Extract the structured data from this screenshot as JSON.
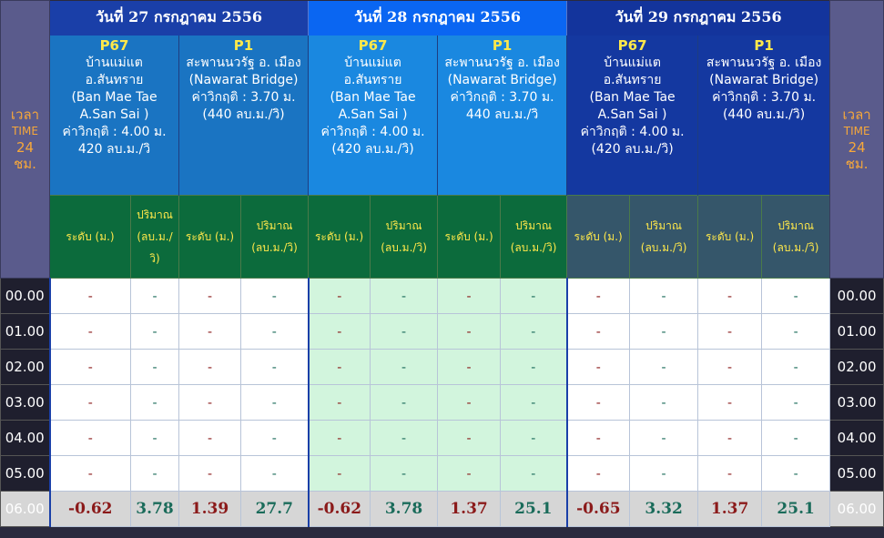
{
  "time_header": {
    "label": "เวลา",
    "time_word": "TIME",
    "hours": "24",
    "unit": "ชม."
  },
  "dates": [
    {
      "label": "วันที่ 27 กรกฎาคม 2556"
    },
    {
      "label": "วันที่ 28 กรกฎาคม 2556"
    },
    {
      "label": "วันที่ 29 กรกฎาคม 2556"
    }
  ],
  "stations": {
    "p67": {
      "code": "P67",
      "line1": "บ้านแม่แต",
      "line2": "อ.สันทราย",
      "line3": "(Ban Mae Tae",
      "line4": "A.San Sai )",
      "crit": "ค่าวิกฤติ : 4.00 ม.",
      "flow": "420 ลบ.ม./วิ",
      "flow_paren": "(420 ลบ.ม./วิ)"
    },
    "p1": {
      "code": "P1",
      "line1": "สะพานนวรัฐ อ. เมือง",
      "line2": "(Nawarat Bridge)",
      "crit": "ค่าวิกฤติ : 3.70 ม.",
      "flow_paren": "(440 ลบ.ม./วิ)",
      "flow": "440 ลบ.ม./วิ"
    }
  },
  "sub_headers": {
    "level": "ระดับ (ม.)",
    "flow_a": "ปริมาณ",
    "flow_b": "(ลบ.ม./",
    "flow_c": "วิ)",
    "flow_full": "(ลบ.ม./วิ)"
  },
  "rows": [
    {
      "hour": "00.00",
      "v": [
        "-",
        "-",
        "-",
        "-",
        "-",
        "-",
        "-",
        "-",
        "-",
        "-",
        "-",
        "-"
      ]
    },
    {
      "hour": "01.00",
      "v": [
        "-",
        "-",
        "-",
        "-",
        "-",
        "-",
        "-",
        "-",
        "-",
        "-",
        "-",
        "-"
      ]
    },
    {
      "hour": "02.00",
      "v": [
        "-",
        "-",
        "-",
        "-",
        "-",
        "-",
        "-",
        "-",
        "-",
        "-",
        "-",
        "-"
      ]
    },
    {
      "hour": "03.00",
      "v": [
        "-",
        "-",
        "-",
        "-",
        "-",
        "-",
        "-",
        "-",
        "-",
        "-",
        "-",
        "-"
      ]
    },
    {
      "hour": "04.00",
      "v": [
        "-",
        "-",
        "-",
        "-",
        "-",
        "-",
        "-",
        "-",
        "-",
        "-",
        "-",
        "-"
      ]
    },
    {
      "hour": "05.00",
      "v": [
        "-",
        "-",
        "-",
        "-",
        "-",
        "-",
        "-",
        "-",
        "-",
        "-",
        "-",
        "-"
      ]
    },
    {
      "hour": "06.00",
      "v": [
        "-0.62",
        "3.78",
        "1.39",
        "27.7",
        "-0.62",
        "3.78",
        "1.37",
        "25.1",
        "-0.65",
        "3.32",
        "1.37",
        "25.1"
      ]
    }
  ]
}
